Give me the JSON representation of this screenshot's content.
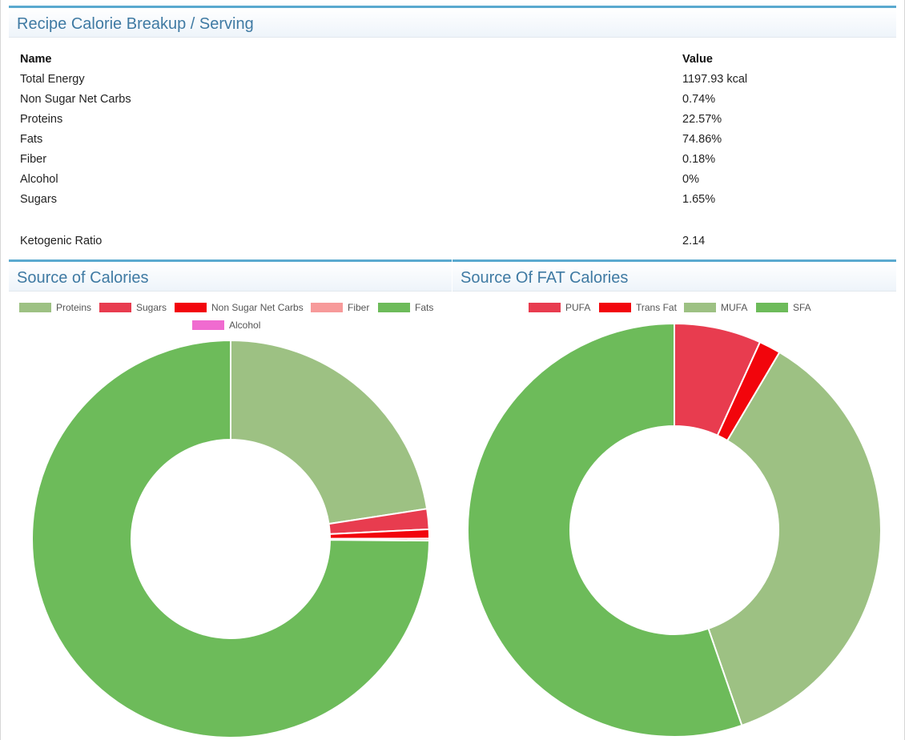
{
  "summary": {
    "title": "Recipe Calorie Breakup / Serving",
    "columns": {
      "name": "Name",
      "value": "Value"
    },
    "rows": [
      {
        "name": "Total Energy",
        "value": "1197.93 kcal"
      },
      {
        "name": "Non Sugar Net Carbs",
        "value": "0.74%"
      },
      {
        "name": "Proteins",
        "value": "22.57%"
      },
      {
        "name": "Fats",
        "value": "74.86%"
      },
      {
        "name": "Fiber",
        "value": "0.18%"
      },
      {
        "name": "Alcohol",
        "value": "0%"
      },
      {
        "name": "Sugars",
        "value": "1.65%"
      }
    ],
    "ratio": {
      "name": "Ketogenic Ratio",
      "value": "2.14"
    }
  },
  "chart_data": [
    {
      "type": "pie",
      "title": "Source of Calories",
      "donut": true,
      "legend_position": "top",
      "series": [
        {
          "name": "Proteins",
          "value": 22.57,
          "color": "#9dc183"
        },
        {
          "name": "Sugars",
          "value": 1.65,
          "color": "#e83c4f"
        },
        {
          "name": "Non Sugar Net Carbs",
          "value": 0.74,
          "color": "#f2050c"
        },
        {
          "name": "Fiber",
          "value": 0.18,
          "color": "#f79a9a"
        },
        {
          "name": "Fats",
          "value": 74.86,
          "color": "#6dbb5a"
        },
        {
          "name": "Alcohol",
          "value": 0,
          "color": "#f06bd0"
        }
      ]
    },
    {
      "type": "pie",
      "title": "Source Of FAT Calories",
      "donut": true,
      "legend_position": "top",
      "series": [
        {
          "name": "PUFA",
          "value": 6.8,
          "color": "#e83c4f"
        },
        {
          "name": "Trans Fat",
          "value": 1.7,
          "color": "#f2050c"
        },
        {
          "name": "MUFA",
          "value": 36.2,
          "color": "#9dc183"
        },
        {
          "name": "SFA",
          "value": 55.3,
          "color": "#6dbb5a"
        }
      ]
    }
  ]
}
